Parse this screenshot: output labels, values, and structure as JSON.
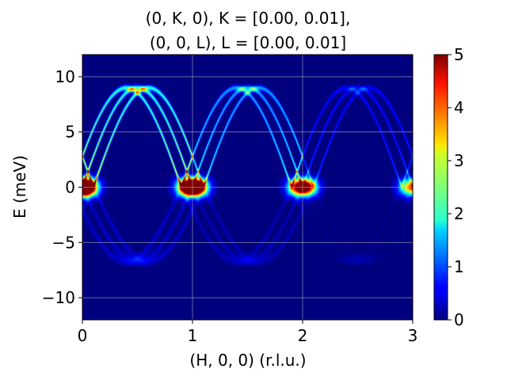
{
  "chart_data": {
    "type": "heatmap",
    "title_lines": [
      "(0, K, 0), K = [0.00, 0.01],",
      "(0, 0, L), L = [0.00, 0.01]"
    ],
    "xlabel": "(H, 0, 0) (r.l.u.)",
    "ylabel": "E (meV)",
    "xlim": [
      0,
      3
    ],
    "ylim": [
      -12,
      12
    ],
    "x_ticks": [
      0,
      1,
      2,
      3
    ],
    "x_tick_labels": [
      "0",
      "1",
      "2",
      "3"
    ],
    "y_ticks": [
      -10,
      -5,
      0,
      5,
      10
    ],
    "y_tick_labels": [
      "−10",
      "−5",
      "0",
      "5",
      "10"
    ],
    "grid": true,
    "colormap": "jet",
    "colorbar": {
      "vmin": 0,
      "vmax": 5,
      "ticks": [
        0,
        1,
        2,
        3,
        4,
        5
      ],
      "tick_labels": [
        "0",
        "1",
        "2",
        "3",
        "4",
        "5"
      ]
    },
    "dispersion": {
      "branch_offsets": [
        -0.1,
        0,
        0.1
      ],
      "max_energy": 9,
      "zone_intensity": [
        1.0,
        0.7,
        0.3
      ],
      "elastic_peaks": [
        {
          "H": 0,
          "intensity": 1.0
        },
        {
          "H": 1,
          "intensity": 0.9
        },
        {
          "H": 2,
          "intensity": 0.6
        },
        {
          "H": 3,
          "intensity": 0.35
        }
      ]
    }
  },
  "colors": {
    "background": "#00007f",
    "grid": "#c8c8c8"
  }
}
